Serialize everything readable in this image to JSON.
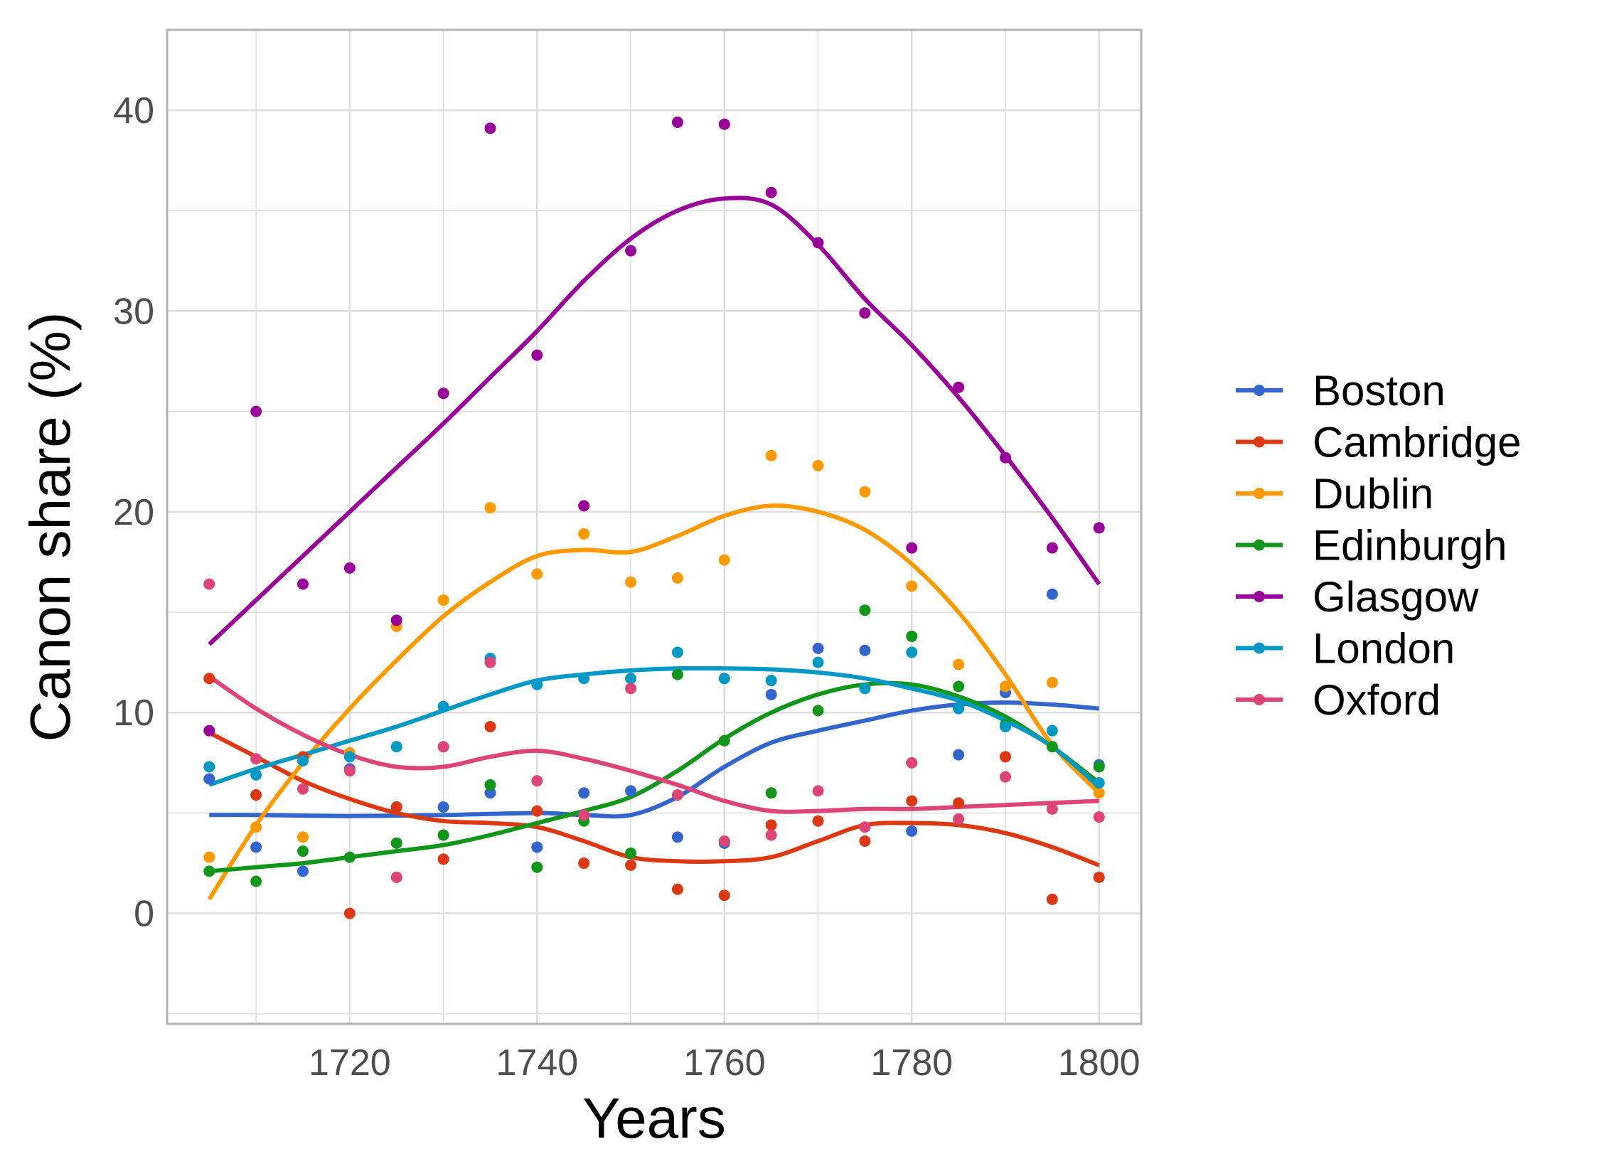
{
  "chart_data": {
    "type": "scatter",
    "xlabel": "Years",
    "ylabel": "Canon share (%)",
    "xlim": [
      1700.5,
      1804.5
    ],
    "ylim": [
      -5.5,
      44
    ],
    "x_ticks": [
      1720,
      1740,
      1760,
      1780,
      1800
    ],
    "y_ticks": [
      0,
      10,
      20,
      30,
      40
    ],
    "grid": true,
    "legend_position": "right",
    "series": [
      {
        "name": "Boston",
        "color": "#3366cc",
        "points": [
          [
            1705,
            6.7
          ],
          [
            1710,
            3.3
          ],
          [
            1715,
            2.1
          ],
          [
            1720,
            7.2
          ],
          [
            1725,
            5.3
          ],
          [
            1730,
            5.3
          ],
          [
            1735,
            6.0
          ],
          [
            1740,
            3.3
          ],
          [
            1745,
            6.0
          ],
          [
            1750,
            6.1
          ],
          [
            1755,
            3.8
          ],
          [
            1760,
            3.5
          ],
          [
            1765,
            10.9
          ],
          [
            1770,
            13.2
          ],
          [
            1775,
            13.1
          ],
          [
            1780,
            4.1
          ],
          [
            1785,
            7.9
          ],
          [
            1790,
            11.0
          ],
          [
            1795,
            15.9
          ],
          [
            1800,
            7.4
          ]
        ],
        "trend": [
          [
            1705,
            4.9
          ],
          [
            1710,
            4.9
          ],
          [
            1720,
            4.85
          ],
          [
            1730,
            4.9
          ],
          [
            1740,
            5.0
          ],
          [
            1745,
            4.9
          ],
          [
            1750,
            4.9
          ],
          [
            1755,
            5.8
          ],
          [
            1760,
            7.3
          ],
          [
            1765,
            8.5
          ],
          [
            1770,
            9.1
          ],
          [
            1775,
            9.6
          ],
          [
            1780,
            10.1
          ],
          [
            1785,
            10.4
          ],
          [
            1790,
            10.5
          ],
          [
            1795,
            10.4
          ],
          [
            1800,
            10.2
          ]
        ]
      },
      {
        "name": "Cambridge",
        "color": "#dc3912",
        "points": [
          [
            1705,
            11.7
          ],
          [
            1710,
            5.9
          ],
          [
            1715,
            7.8
          ],
          [
            1720,
            0.0
          ],
          [
            1725,
            5.3
          ],
          [
            1730,
            2.7
          ],
          [
            1735,
            9.3
          ],
          [
            1740,
            5.1
          ],
          [
            1745,
            2.5
          ],
          [
            1750,
            2.4
          ],
          [
            1755,
            1.2
          ],
          [
            1760,
            0.9
          ],
          [
            1765,
            4.4
          ],
          [
            1770,
            4.6
          ],
          [
            1775,
            3.6
          ],
          [
            1780,
            5.6
          ],
          [
            1785,
            5.5
          ],
          [
            1790,
            7.8
          ],
          [
            1795,
            0.7
          ],
          [
            1800,
            1.8
          ]
        ],
        "trend": [
          [
            1705,
            9.0
          ],
          [
            1710,
            7.8
          ],
          [
            1715,
            6.6
          ],
          [
            1720,
            5.7
          ],
          [
            1725,
            5.0
          ],
          [
            1730,
            4.6
          ],
          [
            1735,
            4.5
          ],
          [
            1740,
            4.3
          ],
          [
            1745,
            3.6
          ],
          [
            1750,
            2.8
          ],
          [
            1755,
            2.6
          ],
          [
            1760,
            2.6
          ],
          [
            1765,
            2.8
          ],
          [
            1770,
            3.6
          ],
          [
            1775,
            4.4
          ],
          [
            1780,
            4.5
          ],
          [
            1785,
            4.4
          ],
          [
            1790,
            4.0
          ],
          [
            1795,
            3.3
          ],
          [
            1800,
            2.4
          ]
        ]
      },
      {
        "name": "Dublin",
        "color": "#ff9900",
        "points": [
          [
            1705,
            2.8
          ],
          [
            1710,
            4.3
          ],
          [
            1715,
            3.8
          ],
          [
            1720,
            8.0
          ],
          [
            1725,
            14.3
          ],
          [
            1730,
            15.6
          ],
          [
            1735,
            20.2
          ],
          [
            1740,
            16.9
          ],
          [
            1745,
            18.9
          ],
          [
            1750,
            16.5
          ],
          [
            1755,
            16.7
          ],
          [
            1760,
            17.6
          ],
          [
            1765,
            22.8
          ],
          [
            1770,
            22.3
          ],
          [
            1775,
            21.0
          ],
          [
            1780,
            16.3
          ],
          [
            1785,
            12.4
          ],
          [
            1790,
            11.3
          ],
          [
            1795,
            11.5
          ],
          [
            1800,
            6.0
          ]
        ],
        "trend": [
          [
            1705,
            0.7
          ],
          [
            1710,
            4.4
          ],
          [
            1715,
            7.5
          ],
          [
            1720,
            10.2
          ],
          [
            1725,
            12.6
          ],
          [
            1730,
            14.8
          ],
          [
            1735,
            16.5
          ],
          [
            1740,
            17.8
          ],
          [
            1745,
            18.1
          ],
          [
            1750,
            18.0
          ],
          [
            1755,
            18.8
          ],
          [
            1760,
            19.8
          ],
          [
            1765,
            20.3
          ],
          [
            1770,
            20.0
          ],
          [
            1775,
            19.1
          ],
          [
            1780,
            17.4
          ],
          [
            1785,
            15.0
          ],
          [
            1790,
            11.9
          ],
          [
            1795,
            8.4
          ],
          [
            1800,
            6.0
          ]
        ]
      },
      {
        "name": "Edinburgh",
        "color": "#109618",
        "points": [
          [
            1705,
            2.1
          ],
          [
            1710,
            1.6
          ],
          [
            1715,
            3.1
          ],
          [
            1720,
            2.8
          ],
          [
            1725,
            3.5
          ],
          [
            1730,
            3.9
          ],
          [
            1735,
            6.4
          ],
          [
            1740,
            2.3
          ],
          [
            1745,
            4.6
          ],
          [
            1750,
            3.0
          ],
          [
            1755,
            11.9
          ],
          [
            1760,
            8.6
          ],
          [
            1765,
            6.0
          ],
          [
            1770,
            10.1
          ],
          [
            1775,
            15.1
          ],
          [
            1780,
            13.8
          ],
          [
            1785,
            11.3
          ],
          [
            1790,
            9.4
          ],
          [
            1795,
            8.3
          ],
          [
            1800,
            7.3
          ]
        ],
        "trend": [
          [
            1705,
            2.1
          ],
          [
            1710,
            2.3
          ],
          [
            1715,
            2.5
          ],
          [
            1720,
            2.8
          ],
          [
            1725,
            3.1
          ],
          [
            1730,
            3.4
          ],
          [
            1735,
            3.9
          ],
          [
            1740,
            4.5
          ],
          [
            1745,
            5.1
          ],
          [
            1750,
            5.8
          ],
          [
            1755,
            7.1
          ],
          [
            1760,
            8.7
          ],
          [
            1765,
            10.0
          ],
          [
            1770,
            10.9
          ],
          [
            1775,
            11.4
          ],
          [
            1780,
            11.4
          ],
          [
            1785,
            10.8
          ],
          [
            1790,
            9.8
          ],
          [
            1795,
            8.3
          ],
          [
            1800,
            6.5
          ]
        ]
      },
      {
        "name": "Glasgow",
        "color": "#990099",
        "points": [
          [
            1705,
            9.1
          ],
          [
            1710,
            25.0
          ],
          [
            1715,
            16.4
          ],
          [
            1720,
            17.2
          ],
          [
            1725,
            14.6
          ],
          [
            1730,
            25.9
          ],
          [
            1735,
            39.1
          ],
          [
            1740,
            27.8
          ],
          [
            1745,
            20.3
          ],
          [
            1750,
            33.0
          ],
          [
            1755,
            39.4
          ],
          [
            1760,
            39.3
          ],
          [
            1765,
            35.9
          ],
          [
            1770,
            33.4
          ],
          [
            1775,
            29.9
          ],
          [
            1780,
            18.2
          ],
          [
            1785,
            26.2
          ],
          [
            1790,
            22.7
          ],
          [
            1795,
            18.2
          ],
          [
            1800,
            19.2
          ]
        ],
        "trend": [
          [
            1705,
            13.4
          ],
          [
            1710,
            15.6
          ],
          [
            1715,
            17.8
          ],
          [
            1720,
            20.0
          ],
          [
            1725,
            22.2
          ],
          [
            1730,
            24.4
          ],
          [
            1735,
            26.7
          ],
          [
            1740,
            29.0
          ],
          [
            1745,
            31.5
          ],
          [
            1750,
            33.6
          ],
          [
            1755,
            35.0
          ],
          [
            1760,
            35.6
          ],
          [
            1765,
            35.3
          ],
          [
            1770,
            33.3
          ],
          [
            1775,
            30.6
          ],
          [
            1780,
            28.3
          ],
          [
            1785,
            25.7
          ],
          [
            1790,
            22.8
          ],
          [
            1795,
            19.7
          ],
          [
            1800,
            16.4
          ]
        ]
      },
      {
        "name": "London",
        "color": "#0099c6",
        "points": [
          [
            1705,
            7.3
          ],
          [
            1710,
            6.9
          ],
          [
            1715,
            7.6
          ],
          [
            1720,
            7.8
          ],
          [
            1725,
            8.3
          ],
          [
            1730,
            10.3
          ],
          [
            1735,
            12.7
          ],
          [
            1740,
            11.4
          ],
          [
            1745,
            11.7
          ],
          [
            1750,
            11.7
          ],
          [
            1755,
            13.0
          ],
          [
            1760,
            11.7
          ],
          [
            1765,
            11.6
          ],
          [
            1770,
            12.5
          ],
          [
            1775,
            11.2
          ],
          [
            1780,
            13.0
          ],
          [
            1785,
            10.2
          ],
          [
            1790,
            9.3
          ],
          [
            1795,
            9.1
          ],
          [
            1800,
            6.5
          ]
        ],
        "trend": [
          [
            1705,
            6.4
          ],
          [
            1710,
            7.2
          ],
          [
            1715,
            7.9
          ],
          [
            1720,
            8.6
          ],
          [
            1725,
            9.3
          ],
          [
            1730,
            10.1
          ],
          [
            1735,
            10.9
          ],
          [
            1740,
            11.6
          ],
          [
            1745,
            11.9
          ],
          [
            1750,
            12.1
          ],
          [
            1755,
            12.2
          ],
          [
            1760,
            12.2
          ],
          [
            1765,
            12.15
          ],
          [
            1770,
            12.0
          ],
          [
            1775,
            11.7
          ],
          [
            1780,
            11.2
          ],
          [
            1785,
            10.6
          ],
          [
            1790,
            9.6
          ],
          [
            1795,
            8.3
          ],
          [
            1800,
            6.3
          ]
        ]
      },
      {
        "name": "Oxford",
        "color": "#dd4477",
        "points": [
          [
            1705,
            16.4
          ],
          [
            1710,
            7.7
          ],
          [
            1715,
            6.2
          ],
          [
            1720,
            7.1
          ],
          [
            1725,
            1.8
          ],
          [
            1730,
            8.3
          ],
          [
            1735,
            12.5
          ],
          [
            1740,
            6.6
          ],
          [
            1745,
            4.9
          ],
          [
            1750,
            11.2
          ],
          [
            1755,
            5.9
          ],
          [
            1760,
            3.6
          ],
          [
            1765,
            3.9
          ],
          [
            1770,
            6.1
          ],
          [
            1775,
            4.3
          ],
          [
            1780,
            7.5
          ],
          [
            1785,
            4.7
          ],
          [
            1790,
            6.8
          ],
          [
            1795,
            5.2
          ],
          [
            1800,
            4.8
          ]
        ],
        "trend": [
          [
            1705,
            11.8
          ],
          [
            1710,
            10.2
          ],
          [
            1715,
            8.9
          ],
          [
            1720,
            7.9
          ],
          [
            1725,
            7.3
          ],
          [
            1730,
            7.3
          ],
          [
            1735,
            7.8
          ],
          [
            1740,
            8.1
          ],
          [
            1745,
            7.7
          ],
          [
            1750,
            7.1
          ],
          [
            1755,
            6.4
          ],
          [
            1760,
            5.6
          ],
          [
            1765,
            5.1
          ],
          [
            1770,
            5.1
          ],
          [
            1775,
            5.2
          ],
          [
            1780,
            5.2
          ],
          [
            1785,
            5.3
          ],
          [
            1790,
            5.4
          ],
          [
            1795,
            5.5
          ],
          [
            1800,
            5.6
          ]
        ]
      }
    ]
  }
}
